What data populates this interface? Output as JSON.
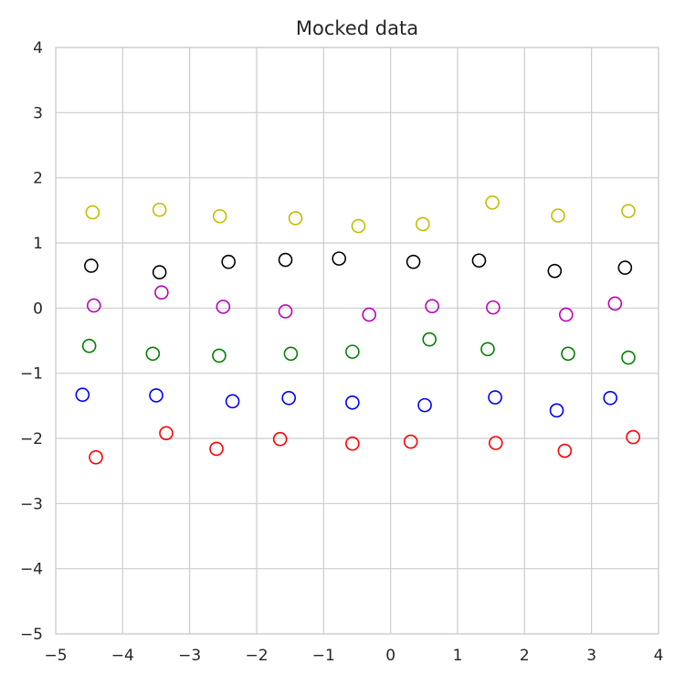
{
  "chart_data": {
    "type": "scatter",
    "title": "Mocked data",
    "xlabel": "",
    "ylabel": "",
    "xlim": [
      -5,
      4
    ],
    "ylim": [
      -5,
      4
    ],
    "xticks": [
      -5,
      -4,
      -3,
      -2,
      -1,
      0,
      1,
      2,
      3,
      4
    ],
    "yticks": [
      -5,
      -4,
      -3,
      -2,
      -1,
      0,
      1,
      2,
      3,
      4
    ],
    "grid": true,
    "marker": "open-circle",
    "series": [
      {
        "color": "#bfbf00",
        "points": [
          [
            -4.45,
            1.47
          ],
          [
            -3.45,
            1.51
          ],
          [
            -2.55,
            1.41
          ],
          [
            -1.42,
            1.38
          ],
          [
            -0.48,
            1.26
          ],
          [
            0.48,
            1.29
          ],
          [
            1.52,
            1.62
          ],
          [
            2.5,
            1.42
          ],
          [
            3.55,
            1.49
          ]
        ]
      },
      {
        "color": "#000000",
        "points": [
          [
            -4.47,
            0.65
          ],
          [
            -3.45,
            0.55
          ],
          [
            -2.42,
            0.71
          ],
          [
            -1.57,
            0.74
          ],
          [
            -0.77,
            0.76
          ],
          [
            0.34,
            0.71
          ],
          [
            1.32,
            0.73
          ],
          [
            2.45,
            0.57
          ],
          [
            3.5,
            0.62
          ]
        ]
      },
      {
        "color": "#bf00bf",
        "points": [
          [
            -4.43,
            0.04
          ],
          [
            -3.42,
            0.24
          ],
          [
            -2.5,
            0.02
          ],
          [
            -1.57,
            -0.05
          ],
          [
            -0.32,
            -0.1
          ],
          [
            0.62,
            0.03
          ],
          [
            1.53,
            0.01
          ],
          [
            2.62,
            -0.1
          ],
          [
            3.35,
            0.07
          ]
        ]
      },
      {
        "color": "#008000",
        "points": [
          [
            -4.5,
            -0.58
          ],
          [
            -3.55,
            -0.7
          ],
          [
            -2.56,
            -0.73
          ],
          [
            -1.49,
            -0.7
          ],
          [
            -0.57,
            -0.67
          ],
          [
            0.58,
            -0.48
          ],
          [
            1.45,
            -0.63
          ],
          [
            2.65,
            -0.7
          ],
          [
            3.55,
            -0.76
          ]
        ]
      },
      {
        "color": "#0000ff",
        "points": [
          [
            -4.6,
            -1.33
          ],
          [
            -3.5,
            -1.34
          ],
          [
            -2.36,
            -1.43
          ],
          [
            -1.52,
            -1.38
          ],
          [
            -0.57,
            -1.45
          ],
          [
            0.51,
            -1.49
          ],
          [
            1.56,
            -1.37
          ],
          [
            2.48,
            -1.57
          ],
          [
            3.28,
            -1.38
          ]
        ]
      },
      {
        "color": "#ff0000",
        "points": [
          [
            -4.4,
            -2.29
          ],
          [
            -3.35,
            -1.92
          ],
          [
            -2.6,
            -2.16
          ],
          [
            -1.65,
            -2.01
          ],
          [
            -0.57,
            -2.08
          ],
          [
            0.3,
            -2.05
          ],
          [
            1.57,
            -2.07
          ],
          [
            2.6,
            -2.19
          ],
          [
            3.62,
            -1.98
          ]
        ]
      }
    ]
  }
}
